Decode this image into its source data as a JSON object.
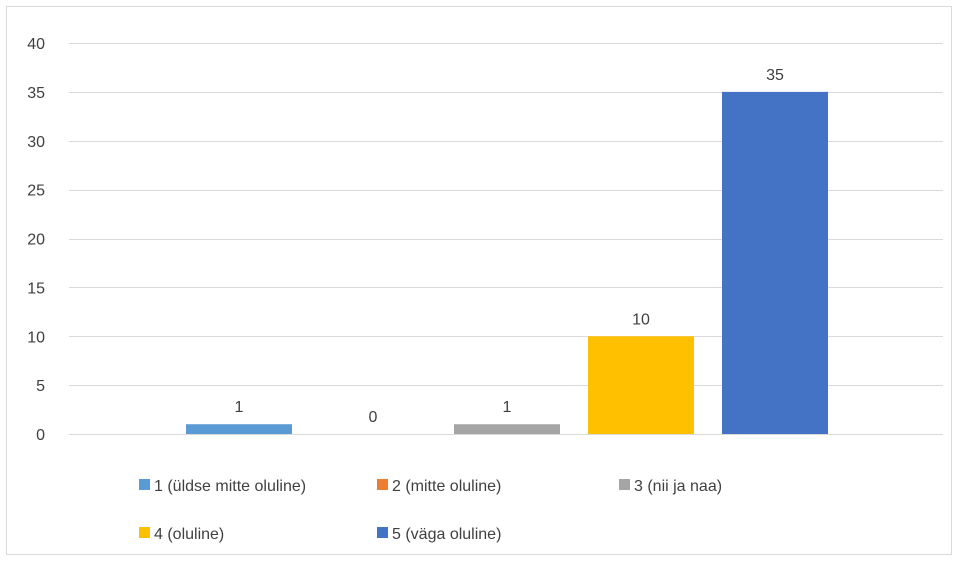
{
  "chart_data": {
    "type": "bar",
    "title": "",
    "xlabel": "",
    "ylabel": "",
    "ylim": [
      0,
      40
    ],
    "yticks": [
      0,
      5,
      10,
      15,
      20,
      25,
      30,
      35,
      40
    ],
    "grid": true,
    "legend_position": "bottom",
    "categories": [
      "1 (üldse mitte oluline)",
      "2 (mitte oluline)",
      "3 (nii ja naa)",
      "4 (oluline)",
      "5 (väga oluline)"
    ],
    "values": [
      1,
      0,
      1,
      10,
      35
    ],
    "colors": [
      "#5b9bd5",
      "#ed7d31",
      "#a5a5a5",
      "#ffc000",
      "#4472c4"
    ]
  }
}
